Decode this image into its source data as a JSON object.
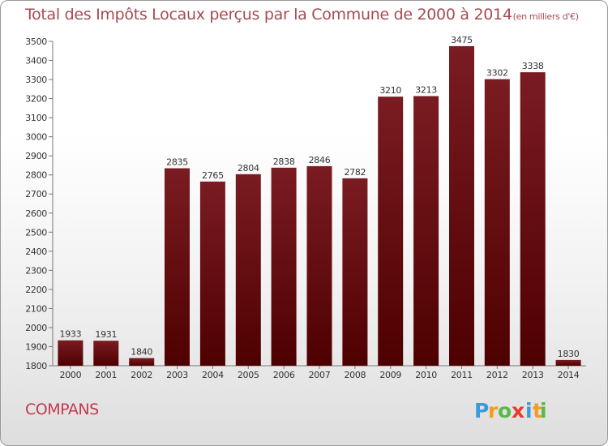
{
  "chart_data": {
    "type": "bar",
    "title": "Total des Impôts Locaux perçus par la Commune de 2000 à 2014",
    "unit_note": "(en milliers d'€)",
    "categories": [
      "2000",
      "2001",
      "2002",
      "2003",
      "2004",
      "2005",
      "2006",
      "2007",
      "2008",
      "2009",
      "2010",
      "2011",
      "2012",
      "2013",
      "2014"
    ],
    "values": [
      1933,
      1931,
      1840,
      2835,
      2765,
      2804,
      2838,
      2846,
      2782,
      3210,
      3213,
      3475,
      3302,
      3338,
      1830
    ],
    "ylim": [
      1800,
      3500
    ],
    "yticks": [
      1800,
      1900,
      2000,
      2100,
      2200,
      2300,
      2400,
      2500,
      2600,
      2700,
      2800,
      2900,
      3000,
      3100,
      3200,
      3300,
      3400,
      3500
    ],
    "grid": false,
    "bar_color": "#7a1c22",
    "bar_color_dark": "#4e0000"
  },
  "footer": {
    "commune": "COMPANS",
    "logo_text": "Proxiti",
    "logo_letters": [
      {
        "ch": "P",
        "color": "#3a9bd8"
      },
      {
        "ch": "r",
        "color": "#f39c1e"
      },
      {
        "ch": "o",
        "color": "#58b947"
      },
      {
        "ch": "x",
        "color": "#e8392a"
      },
      {
        "ch": "i",
        "color": "#3a9bd8"
      },
      {
        "ch": "t",
        "color": "#f39c1e"
      },
      {
        "ch": "i",
        "color": "#58b947"
      }
    ]
  }
}
